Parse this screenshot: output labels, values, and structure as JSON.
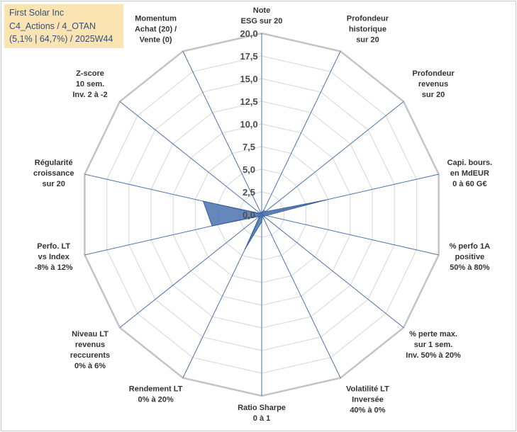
{
  "title_box": {
    "line1": "First Solar Inc",
    "line2": "C4_Actions / 4_OTAN",
    "line3": "(5,1% | 64,7%) / 2025W44"
  },
  "chart_data": {
    "type": "radar",
    "title": "First Solar Inc",
    "subtitle": "C4_Actions / 4_OTAN — (5,1% | 64,7%) / 2025W44",
    "rmin": 0,
    "rmax": 20,
    "tick_values": [
      0,
      2.5,
      5,
      7.5,
      10,
      12.5,
      15,
      17.5,
      20
    ],
    "tick_labels": [
      "0,0",
      "2,5",
      "5,0",
      "7,5",
      "10,0",
      "12,5",
      "15,0",
      "17,5",
      "20,0"
    ],
    "axes": [
      {
        "label": [
          "Note",
          "ESG sur 20"
        ],
        "value": 0.2
      },
      {
        "label": [
          "Profondeur",
          "historique",
          "sur 20"
        ],
        "value": 0.5
      },
      {
        "label": [
          "Profondeur",
          "revenus",
          "sur 20"
        ],
        "value": 0.5
      },
      {
        "label": [
          "Capi. bours.",
          "en MdEUR",
          "0 à 60 G€"
        ],
        "value": 7.2
      },
      {
        "label": [
          "% perfo 1A",
          "positive",
          "50% à 80%"
        ],
        "value": 0.5
      },
      {
        "label": [
          "% perte max.",
          "sur 1 sem.",
          "Inv. 50% à 20%"
        ],
        "value": 0.3
      },
      {
        "label": [
          "Volatilité LT",
          "Inversée",
          "40% à 0%"
        ],
        "value": 0.2
      },
      {
        "label": [
          "Ratio Sharpe",
          "0 à 1"
        ],
        "value": 0.8
      },
      {
        "label": [
          "Rendement LT",
          "0% à 20%"
        ],
        "value": 4.2
      },
      {
        "label": [
          "Niveau LT",
          "revenus",
          "reccurents",
          "0% à 6%"
        ],
        "value": 0.3
      },
      {
        "label": [
          "Perfo. LT",
          "vs Index",
          "-8% à 12%"
        ],
        "value": 5.6
      },
      {
        "label": [
          "Régularité",
          "croissance",
          "sur 20"
        ],
        "value": 6.6
      },
      {
        "label": [
          "Z-score",
          "10 sem.",
          "Inv. 2 à -2"
        ],
        "value": 0.2
      },
      {
        "label": [
          "Momentum",
          "Achat (20) /",
          "Vente (0)"
        ],
        "value": 0.3
      }
    ],
    "series": [
      {
        "name": "First Solar Inc",
        "color": "#4a72b0"
      }
    ],
    "grid": true,
    "legend": "none"
  }
}
